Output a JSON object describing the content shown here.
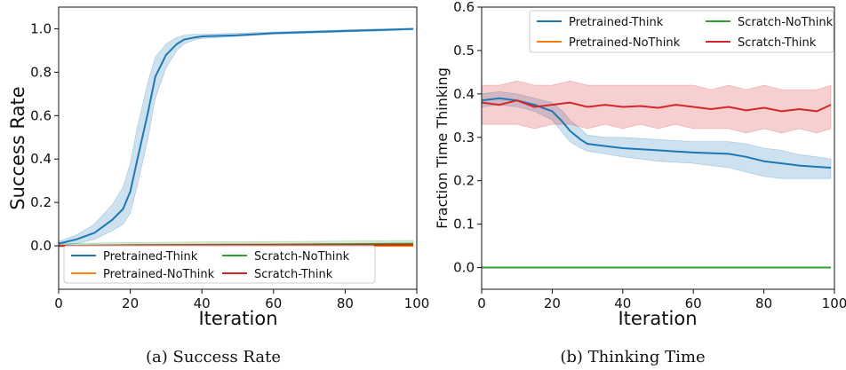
{
  "chart_data": [
    {
      "type": "line",
      "caption": "(a) Success Rate",
      "xlabel": "Iteration",
      "ylabel": "Success Rate",
      "xlim": [
        0,
        100
      ],
      "ylim": [
        -0.2,
        1.1
      ],
      "x_ticks": [
        0,
        20,
        40,
        60,
        80,
        100
      ],
      "y_ticks": [
        0.0,
        0.2,
        0.4,
        0.6,
        0.8,
        1.0
      ],
      "legend": {
        "placement": "lower-center",
        "columns": 2
      },
      "grid": false,
      "series": [
        {
          "name": "Pretrained-Think",
          "color": "#1f77b4",
          "x": [
            0,
            5,
            10,
            15,
            18,
            20,
            22,
            25,
            27,
            30,
            33,
            35,
            38,
            40,
            50,
            60,
            70,
            80,
            90,
            99
          ],
          "y": [
            0.01,
            0.03,
            0.06,
            0.12,
            0.17,
            0.25,
            0.4,
            0.62,
            0.78,
            0.88,
            0.93,
            0.95,
            0.96,
            0.965,
            0.97,
            0.98,
            0.985,
            0.99,
            0.995,
            1.0
          ],
          "band_low": [
            0.0,
            0.01,
            0.03,
            0.07,
            0.1,
            0.15,
            0.28,
            0.5,
            0.68,
            0.82,
            0.9,
            0.93,
            0.95,
            0.955,
            0.965,
            0.975,
            0.98,
            0.985,
            0.99,
            0.995
          ],
          "band_high": [
            0.02,
            0.05,
            0.1,
            0.19,
            0.27,
            0.38,
            0.55,
            0.76,
            0.87,
            0.93,
            0.96,
            0.97,
            0.975,
            0.975,
            0.98,
            0.985,
            0.99,
            0.995,
            1.0,
            1.0
          ]
        },
        {
          "name": "Pretrained-NoThink",
          "color": "#ff7f0e",
          "x": [
            0,
            20,
            40,
            60,
            80,
            99
          ],
          "y": [
            0.0,
            0.0,
            0.0,
            0.0,
            0.0,
            0.0
          ]
        },
        {
          "name": "Scratch-NoThink",
          "color": "#2ca02c",
          "x": [
            0,
            20,
            40,
            60,
            80,
            99
          ],
          "y": [
            0.0,
            0.003,
            0.005,
            0.006,
            0.008,
            0.01
          ],
          "band_low": [
            0.0,
            0.0,
            0.0,
            0.0,
            0.0,
            0.0
          ],
          "band_high": [
            0.01,
            0.015,
            0.018,
            0.02,
            0.022,
            0.025
          ]
        },
        {
          "name": "Scratch-Think",
          "color": "#d62728",
          "x": [
            0,
            20,
            40,
            60,
            80,
            99
          ],
          "y": [
            0.0,
            0.002,
            0.003,
            0.004,
            0.004,
            0.005
          ]
        }
      ]
    },
    {
      "type": "line",
      "caption": "(b) Thinking Time",
      "xlabel": "Iteration",
      "ylabel": "Fraction Time Thinking",
      "xlim": [
        0,
        100
      ],
      "ylim": [
        -0.05,
        0.6
      ],
      "x_ticks": [
        0,
        20,
        40,
        60,
        80,
        100
      ],
      "y_ticks": [
        0.0,
        0.1,
        0.2,
        0.3,
        0.4,
        0.5,
        0.6
      ],
      "legend": {
        "placement": "upper-right",
        "columns": 2
      },
      "grid": false,
      "series": [
        {
          "name": "Pretrained-Think",
          "color": "#1f77b4",
          "x": [
            0,
            5,
            10,
            15,
            20,
            23,
            25,
            28,
            30,
            35,
            40,
            50,
            60,
            70,
            75,
            80,
            85,
            90,
            95,
            99
          ],
          "y": [
            0.385,
            0.39,
            0.385,
            0.375,
            0.36,
            0.335,
            0.315,
            0.295,
            0.285,
            0.28,
            0.275,
            0.27,
            0.265,
            0.262,
            0.255,
            0.245,
            0.24,
            0.235,
            0.232,
            0.23
          ],
          "band_low": [
            0.37,
            0.375,
            0.37,
            0.36,
            0.34,
            0.31,
            0.29,
            0.275,
            0.268,
            0.262,
            0.255,
            0.245,
            0.24,
            0.23,
            0.22,
            0.21,
            0.205,
            0.205,
            0.205,
            0.205
          ],
          "band_high": [
            0.4,
            0.405,
            0.4,
            0.39,
            0.38,
            0.36,
            0.34,
            0.32,
            0.305,
            0.3,
            0.3,
            0.295,
            0.29,
            0.29,
            0.285,
            0.275,
            0.27,
            0.26,
            0.255,
            0.25
          ]
        },
        {
          "name": "Pretrained-NoThink",
          "color": "#ff7f0e",
          "x": [
            0,
            20,
            40,
            60,
            80,
            99
          ],
          "y": [
            0.0,
            0.0,
            0.0,
            0.0,
            0.0,
            0.0
          ]
        },
        {
          "name": "Scratch-NoThink",
          "color": "#2ca02c",
          "x": [
            0,
            20,
            40,
            60,
            80,
            99
          ],
          "y": [
            0.0,
            0.0,
            0.0,
            0.0,
            0.0,
            0.0
          ]
        },
        {
          "name": "Scratch-Think",
          "color": "#d62728",
          "x": [
            0,
            5,
            10,
            15,
            20,
            25,
            30,
            35,
            40,
            45,
            50,
            55,
            60,
            65,
            70,
            75,
            80,
            85,
            90,
            95,
            99
          ],
          "y": [
            0.38,
            0.375,
            0.385,
            0.37,
            0.375,
            0.38,
            0.37,
            0.375,
            0.37,
            0.372,
            0.368,
            0.375,
            0.37,
            0.365,
            0.37,
            0.362,
            0.368,
            0.36,
            0.365,
            0.36,
            0.375
          ],
          "band_low": [
            0.33,
            0.33,
            0.33,
            0.32,
            0.33,
            0.33,
            0.32,
            0.33,
            0.32,
            0.33,
            0.32,
            0.33,
            0.32,
            0.32,
            0.32,
            0.31,
            0.32,
            0.31,
            0.32,
            0.31,
            0.32
          ],
          "band_high": [
            0.42,
            0.42,
            0.43,
            0.42,
            0.42,
            0.43,
            0.42,
            0.42,
            0.42,
            0.42,
            0.42,
            0.42,
            0.42,
            0.41,
            0.42,
            0.41,
            0.42,
            0.41,
            0.41,
            0.41,
            0.42
          ]
        }
      ]
    }
  ]
}
